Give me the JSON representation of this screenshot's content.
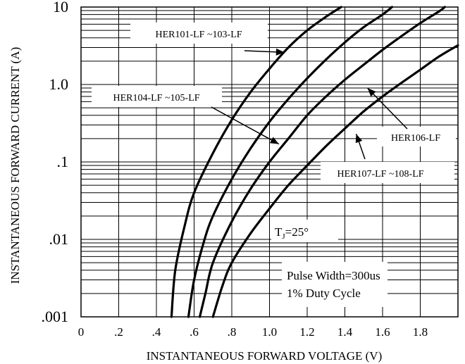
{
  "chart_data": {
    "type": "line",
    "title": "",
    "xlabel": "INSTANTANEOUS FORWARD VOLTAGE (V)",
    "ylabel": "INSTANTANEOUS FORWARD CURRENT (A)",
    "xlim": [
      0,
      2.0
    ],
    "ylim": [
      0.001,
      10
    ],
    "yscale": "log",
    "grid": true,
    "x_ticks": [
      {
        "value": 0,
        "label": "0"
      },
      {
        "value": 0.2,
        "label": ".2"
      },
      {
        "value": 0.4,
        "label": ".4"
      },
      {
        "value": 0.6,
        "label": ".6"
      },
      {
        "value": 0.8,
        "label": ".8"
      },
      {
        "value": 1.0,
        "label": "1.0"
      },
      {
        "value": 1.2,
        "label": "1.2"
      },
      {
        "value": 1.4,
        "label": "1.4"
      },
      {
        "value": 1.6,
        "label": "1.6"
      },
      {
        "value": 1.8,
        "label": "1.8"
      }
    ],
    "y_ticks": [
      {
        "value": 0.001,
        "label": ".001"
      },
      {
        "value": 0.01,
        "label": ".01"
      },
      {
        "value": 0.1,
        "label": ".1"
      },
      {
        "value": 1,
        "label": "1.0"
      },
      {
        "value": 10,
        "label": "10"
      }
    ],
    "series": [
      {
        "name": "HER101-LF ~103-LF",
        "points": [
          [
            0.48,
            0.001
          ],
          [
            0.5,
            0.004
          ],
          [
            0.55,
            0.015
          ],
          [
            0.6,
            0.04
          ],
          [
            0.7,
            0.13
          ],
          [
            0.8,
            0.35
          ],
          [
            0.9,
            0.8
          ],
          [
            1.0,
            1.6
          ],
          [
            1.1,
            3.0
          ],
          [
            1.2,
            5.0
          ],
          [
            1.3,
            7.5
          ],
          [
            1.38,
            10
          ]
        ]
      },
      {
        "name": "HER104-LF ~105-LF",
        "points": [
          [
            0.57,
            0.001
          ],
          [
            0.6,
            0.003
          ],
          [
            0.65,
            0.009
          ],
          [
            0.7,
            0.02
          ],
          [
            0.8,
            0.06
          ],
          [
            0.9,
            0.15
          ],
          [
            1.0,
            0.33
          ],
          [
            1.1,
            0.65
          ],
          [
            1.2,
            1.2
          ],
          [
            1.3,
            2.1
          ],
          [
            1.4,
            3.5
          ],
          [
            1.5,
            5.5
          ],
          [
            1.6,
            8.0
          ],
          [
            1.65,
            10
          ]
        ]
      },
      {
        "name": "HER106-LF",
        "points": [
          [
            0.63,
            0.001
          ],
          [
            0.66,
            0.002
          ],
          [
            0.7,
            0.005
          ],
          [
            0.8,
            0.017
          ],
          [
            0.9,
            0.045
          ],
          [
            1.0,
            0.1
          ],
          [
            1.1,
            0.2
          ],
          [
            1.2,
            0.4
          ],
          [
            1.3,
            0.7
          ],
          [
            1.4,
            1.15
          ],
          [
            1.5,
            1.8
          ],
          [
            1.6,
            2.8
          ],
          [
            1.7,
            4.2
          ],
          [
            1.8,
            6.2
          ],
          [
            1.9,
            8.8
          ],
          [
            1.93,
            10
          ]
        ]
      },
      {
        "name": "HER107-LF ~108-LF",
        "points": [
          [
            0.7,
            0.001
          ],
          [
            0.75,
            0.0025
          ],
          [
            0.8,
            0.005
          ],
          [
            0.9,
            0.012
          ],
          [
            1.0,
            0.025
          ],
          [
            1.1,
            0.05
          ],
          [
            1.2,
            0.09
          ],
          [
            1.3,
            0.16
          ],
          [
            1.4,
            0.27
          ],
          [
            1.5,
            0.45
          ],
          [
            1.6,
            0.7
          ],
          [
            1.7,
            1.05
          ],
          [
            1.8,
            1.55
          ],
          [
            1.9,
            2.3
          ],
          [
            2.0,
            3.2
          ]
        ]
      }
    ],
    "annotations": [
      {
        "text": "HER101-LF ~103-LF",
        "target": [
          1.08,
          2.6
        ]
      },
      {
        "text": "HER104-LF ~105-LF",
        "target": [
          1.05,
          0.17
        ]
      },
      {
        "text": "HER106-LF",
        "target": [
          1.52,
          0.9
        ]
      },
      {
        "text": "HER107-LF ~108-LF",
        "target": [
          1.46,
          0.23
        ]
      },
      {
        "text_main": "T",
        "text_sub": "J",
        "text_rest": "=25°"
      },
      {
        "lines": [
          "Pulse Width=300us",
          "1% Duty Cycle"
        ]
      }
    ]
  }
}
